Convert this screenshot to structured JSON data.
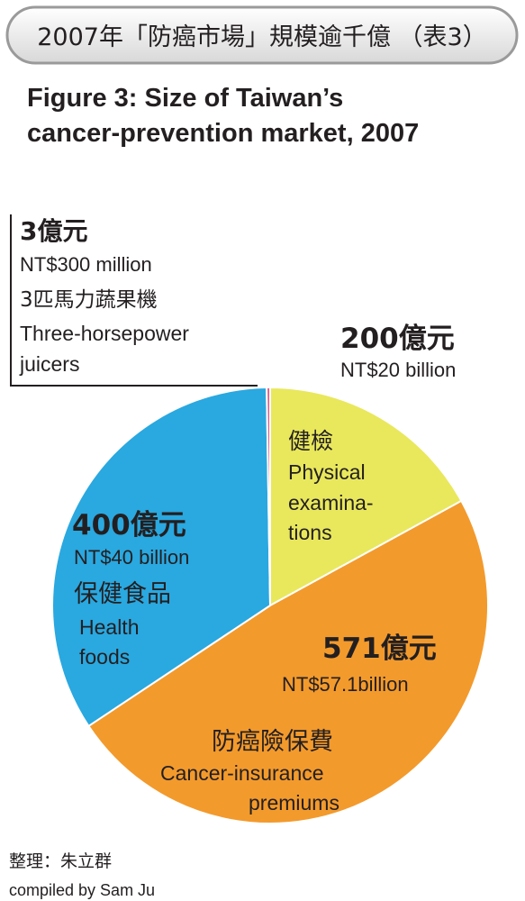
{
  "chart_data": {
    "type": "pie",
    "title": "2007年「防癌市場」規模逾千億 （表3）",
    "subtitle": [
      "Figure 3: Size of Taiwan’s",
      "cancer-prevention market, 2007"
    ],
    "categories": [
      "健檢",
      "防癌險保費",
      "保健食品",
      "3匹馬力蔬果機"
    ],
    "categories_en": [
      [
        "Physical",
        "examina-",
        "tions"
      ],
      [
        "Cancer-insurance",
        "premiums"
      ],
      [
        "Health",
        "foods"
      ],
      [
        "Three-horsepower",
        "juicers"
      ]
    ],
    "values": [
      200,
      571,
      400,
      3
    ],
    "value_labels": [
      "200億元",
      "571億元",
      "400億元",
      "3億元"
    ],
    "value_labels_en": [
      "NT$20 billion",
      "NT$57.1billion",
      "NT$40 billion",
      "NT$300 million"
    ],
    "colors": [
      "#e9e85c",
      "#f39a2c",
      "#2aa8e0",
      "#e4588a"
    ],
    "source": "整理：朱立群",
    "source_en": "compiled by Sam Ju"
  }
}
